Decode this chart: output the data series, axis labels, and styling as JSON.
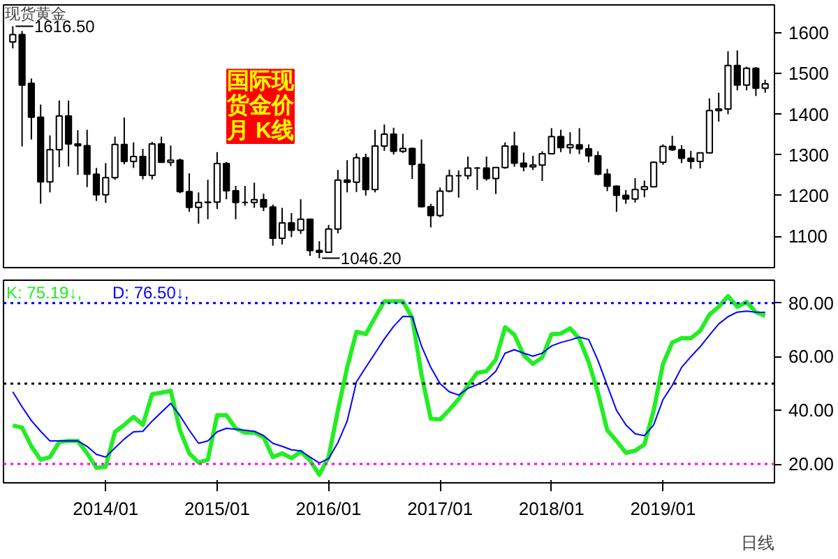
{
  "chart_data": [
    {
      "type": "candlestick",
      "title": "国际现货金价月 K线",
      "xlim": [
        "2013-02",
        "2020-01"
      ],
      "ylim": [
        1023,
        1669
      ],
      "yticks": [
        1100,
        1200,
        1300,
        1400,
        1500,
        1600
      ],
      "tick_labels": "y",
      "annotations": [
        "现货黄金",
        {
          "text": "1616.50",
          "x": "2013-03",
          "y": 1616.5
        },
        {
          "text": "1046.20",
          "x": "2015-12",
          "y": 1046.2
        }
      ],
      "x": [
        "2013-03",
        "2013-04",
        "2013-05",
        "2013-06",
        "2013-07",
        "2013-08",
        "2013-09",
        "2013-10",
        "2013-11",
        "2013-12",
        "2014-01",
        "2014-02",
        "2014-03",
        "2014-04",
        "2014-05",
        "2014-06",
        "2014-07",
        "2014-08",
        "2014-09",
        "2014-10",
        "2014-11",
        "2014-12",
        "2015-01",
        "2015-02",
        "2015-03",
        "2015-04",
        "2015-05",
        "2015-06",
        "2015-07",
        "2015-08",
        "2015-09",
        "2015-10",
        "2015-11",
        "2015-12",
        "2016-01",
        "2016-02",
        "2016-03",
        "2016-04",
        "2016-05",
        "2016-06",
        "2016-07",
        "2016-08",
        "2016-09",
        "2016-10",
        "2016-11",
        "2016-12",
        "2017-01",
        "2017-02",
        "2017-03",
        "2017-04",
        "2017-05",
        "2017-06",
        "2017-07",
        "2017-08",
        "2017-09",
        "2017-10",
        "2017-11",
        "2017-12",
        "2018-01",
        "2018-02",
        "2018-03",
        "2018-04",
        "2018-05",
        "2018-06",
        "2018-07",
        "2018-08",
        "2018-09",
        "2018-10",
        "2018-11",
        "2018-12",
        "2019-01",
        "2019-02",
        "2019-03",
        "2019-04",
        "2019-05",
        "2019-06",
        "2019-07",
        "2019-08",
        "2019-09",
        "2019-10",
        "2019-11",
        "2019-12"
      ],
      "ohlc": [
        [
          1578,
          1616.5,
          1562,
          1596
        ],
        [
          1596,
          1605,
          1321,
          1472
        ],
        [
          1476,
          1488,
          1338,
          1393
        ],
        [
          1393,
          1424,
          1180,
          1234
        ],
        [
          1234,
          1348,
          1208,
          1313
        ],
        [
          1313,
          1434,
          1270,
          1396
        ],
        [
          1396,
          1434,
          1272,
          1327
        ],
        [
          1327,
          1361,
          1251,
          1323
        ],
        [
          1323,
          1362,
          1221,
          1253
        ],
        [
          1253,
          1268,
          1187,
          1202
        ],
        [
          1202,
          1280,
          1182,
          1244
        ],
        [
          1244,
          1345,
          1239,
          1326
        ],
        [
          1326,
          1392,
          1277,
          1284
        ],
        [
          1284,
          1331,
          1268,
          1296
        ],
        [
          1296,
          1315,
          1240,
          1250
        ],
        [
          1250,
          1332,
          1240,
          1327
        ],
        [
          1327,
          1345,
          1281,
          1282
        ],
        [
          1282,
          1323,
          1273,
          1287
        ],
        [
          1287,
          1291,
          1206,
          1210
        ],
        [
          1210,
          1255,
          1160,
          1171
        ],
        [
          1171,
          1208,
          1131,
          1183
        ],
        [
          1183,
          1239,
          1142,
          1184
        ],
        [
          1184,
          1307,
          1167,
          1279
        ],
        [
          1279,
          1283,
          1191,
          1212
        ],
        [
          1212,
          1224,
          1142,
          1183
        ],
        [
          1183,
          1224,
          1175,
          1183
        ],
        [
          1183,
          1232,
          1170,
          1190
        ],
        [
          1190,
          1205,
          1162,
          1172
        ],
        [
          1172,
          1178,
          1077,
          1095
        ],
        [
          1095,
          1170,
          1080,
          1133
        ],
        [
          1133,
          1157,
          1098,
          1115
        ],
        [
          1115,
          1191,
          1106,
          1142
        ],
        [
          1142,
          1143,
          1052,
          1065
        ],
        [
          1065,
          1088,
          1046.2,
          1061
        ],
        [
          1061,
          1128,
          1060,
          1118
        ],
        [
          1118,
          1263,
          1107,
          1238
        ],
        [
          1238,
          1287,
          1208,
          1233
        ],
        [
          1233,
          1304,
          1209,
          1293
        ],
        [
          1293,
          1303,
          1200,
          1215
        ],
        [
          1215,
          1362,
          1208,
          1322
        ],
        [
          1322,
          1375,
          1310,
          1351
        ],
        [
          1351,
          1367,
          1301,
          1309
        ],
        [
          1309,
          1352,
          1305,
          1316
        ],
        [
          1316,
          1318,
          1241,
          1277
        ],
        [
          1277,
          1338,
          1171,
          1173
        ],
        [
          1173,
          1180,
          1122,
          1151
        ],
        [
          1151,
          1220,
          1147,
          1211
        ],
        [
          1211,
          1264,
          1208,
          1249
        ],
        [
          1249,
          1262,
          1195,
          1249
        ],
        [
          1249,
          1296,
          1240,
          1268
        ],
        [
          1268,
          1270,
          1214,
          1268
        ],
        [
          1268,
          1296,
          1237,
          1242
        ],
        [
          1242,
          1270,
          1204,
          1269
        ],
        [
          1269,
          1331,
          1266,
          1322
        ],
        [
          1322,
          1357,
          1271,
          1280
        ],
        [
          1280,
          1306,
          1260,
          1271
        ],
        [
          1271,
          1298,
          1263,
          1275
        ],
        [
          1275,
          1309,
          1236,
          1303
        ],
        [
          1303,
          1366,
          1302,
          1345
        ],
        [
          1345,
          1362,
          1307,
          1318
        ],
        [
          1318,
          1356,
          1303,
          1325
        ],
        [
          1325,
          1366,
          1302,
          1315
        ],
        [
          1315,
          1326,
          1282,
          1298
        ],
        [
          1298,
          1309,
          1250,
          1253
        ],
        [
          1253,
          1266,
          1211,
          1223
        ],
        [
          1223,
          1225,
          1160,
          1201
        ],
        [
          1201,
          1214,
          1180,
          1192
        ],
        [
          1192,
          1243,
          1183,
          1215
        ],
        [
          1215,
          1237,
          1196,
          1222
        ],
        [
          1222,
          1284,
          1221,
          1282
        ],
        [
          1282,
          1326,
          1276,
          1321
        ],
        [
          1321,
          1347,
          1310,
          1313
        ],
        [
          1313,
          1324,
          1280,
          1292
        ],
        [
          1292,
          1310,
          1266,
          1284
        ],
        [
          1284,
          1306,
          1267,
          1305
        ],
        [
          1305,
          1439,
          1303,
          1409
        ],
        [
          1409,
          1453,
          1382,
          1413
        ],
        [
          1413,
          1555,
          1400,
          1520
        ],
        [
          1520,
          1557,
          1459,
          1472
        ],
        [
          1472,
          1517,
          1459,
          1513
        ],
        [
          1513,
          1516,
          1445,
          1464
        ],
        [
          1464,
          1485,
          1453,
          1475
        ]
      ]
    },
    {
      "type": "line",
      "xlim": [
        "2013-02",
        "2020-01"
      ],
      "ylim": [
        13,
        88.5
      ],
      "yticks": [
        {
          "value": 20,
          "label": "20.00"
        },
        {
          "value": 40,
          "label": "40.00"
        },
        {
          "value": 60,
          "label": "60.00"
        },
        {
          "value": 80,
          "label": "80.00"
        }
      ],
      "xticks": [
        {
          "value": "2014-01",
          "label": "2014/01"
        },
        {
          "value": "2015-01",
          "label": "2015/01"
        },
        {
          "value": "2016-01",
          "label": "2016/01"
        },
        {
          "value": "2017-01",
          "label": "2017/01"
        },
        {
          "value": "2018-01",
          "label": "2018/01"
        },
        {
          "value": "2019-01",
          "label": "2019/01"
        }
      ],
      "annotations": [
        "K: 75.19↓,",
        "D: 76.50↓,",
        "日线"
      ],
      "ref_lines": [
        {
          "axis": "y",
          "value": 80,
          "color": "#0000ff",
          "line_style": "dotted"
        },
        {
          "axis": "y",
          "value": 50,
          "color": "#000000",
          "line_style": "dotted"
        },
        {
          "axis": "y",
          "value": 20,
          "color": "#ff00ff",
          "line_style": "dotted"
        }
      ],
      "x": [
        "2013-03",
        "2013-04",
        "2013-05",
        "2013-06",
        "2013-07",
        "2013-08",
        "2013-09",
        "2013-10",
        "2013-11",
        "2013-12",
        "2014-01",
        "2014-02",
        "2014-03",
        "2014-04",
        "2014-05",
        "2014-06",
        "2014-07",
        "2014-08",
        "2014-09",
        "2014-10",
        "2014-11",
        "2014-12",
        "2015-01",
        "2015-02",
        "2015-03",
        "2015-04",
        "2015-05",
        "2015-06",
        "2015-07",
        "2015-08",
        "2015-09",
        "2015-10",
        "2015-11",
        "2015-12",
        "2016-01",
        "2016-02",
        "2016-03",
        "2016-04",
        "2016-05",
        "2016-06",
        "2016-07",
        "2016-08",
        "2016-09",
        "2016-10",
        "2016-11",
        "2016-12",
        "2017-01",
        "2017-02",
        "2017-03",
        "2017-04",
        "2017-05",
        "2017-06",
        "2017-07",
        "2017-08",
        "2017-09",
        "2017-10",
        "2017-11",
        "2017-12",
        "2018-01",
        "2018-02",
        "2018-03",
        "2018-04",
        "2018-05",
        "2018-06",
        "2018-07",
        "2018-08",
        "2018-09",
        "2018-10",
        "2018-11",
        "2018-12",
        "2019-01",
        "2019-02",
        "2019-03",
        "2019-04",
        "2019-05",
        "2019-06",
        "2019-07",
        "2019-08",
        "2019-09",
        "2019-10",
        "2019-11",
        "2019-12"
      ],
      "series": [
        {
          "color": "#22ee22",
          "values": [
            34.4,
            33.6,
            26.6,
            21.6,
            22.6,
            28.2,
            28.6,
            28.6,
            24.0,
            18.6,
            19.0,
            32.0,
            34.6,
            37.6,
            34.6,
            46.0,
            46.6,
            47.3,
            32.6,
            24.0,
            20.6,
            21.6,
            38.2,
            38.2,
            33.3,
            31.7,
            31.7,
            30.0,
            22.6,
            24.0,
            22.2,
            24.6,
            21.3,
            16.0,
            22.6,
            40.0,
            56.0,
            69.3,
            68.4,
            74.6,
            80.6,
            80.6,
            80.6,
            74.6,
            53.3,
            36.9,
            36.6,
            40.2,
            44.2,
            49.3,
            54.0,
            54.6,
            58.9,
            71.0,
            68.2,
            60.6,
            57.3,
            59.7,
            68.4,
            68.6,
            70.6,
            66.6,
            58.0,
            46.6,
            32.6,
            28.6,
            24.2,
            25.0,
            27.3,
            40.0,
            57.3,
            65.3,
            66.9,
            66.9,
            69.6,
            75.7,
            78.6,
            82.6,
            78.6,
            80.4,
            76.6,
            75.2
          ]
        },
        {
          "color": "#0000ff",
          "values": [
            46.9,
            41.3,
            36.2,
            32.2,
            28.6,
            28.6,
            28.6,
            28.6,
            26.6,
            23.6,
            22.6,
            26.0,
            29.3,
            32.0,
            32.2,
            36.0,
            39.3,
            42.6,
            38.0,
            32.6,
            27.7,
            28.6,
            32.0,
            33.3,
            33.0,
            32.6,
            32.2,
            30.6,
            27.7,
            26.6,
            25.3,
            24.9,
            22.6,
            20.4,
            22.0,
            28.0,
            36.0,
            50.6,
            56.0,
            61.3,
            66.6,
            71.3,
            75.0,
            74.9,
            64.0,
            56.0,
            50.0,
            46.9,
            45.7,
            48.2,
            49.6,
            51.3,
            54.6,
            61.3,
            62.6,
            61.3,
            60.2,
            61.3,
            64.0,
            65.3,
            66.2,
            67.3,
            66.4,
            58.6,
            49.3,
            40.0,
            34.6,
            31.3,
            30.6,
            34.6,
            44.0,
            49.3,
            56.0,
            60.0,
            63.7,
            68.0,
            72.2,
            74.9,
            76.6,
            77.0,
            76.6,
            76.5
          ]
        }
      ]
    }
  ]
}
